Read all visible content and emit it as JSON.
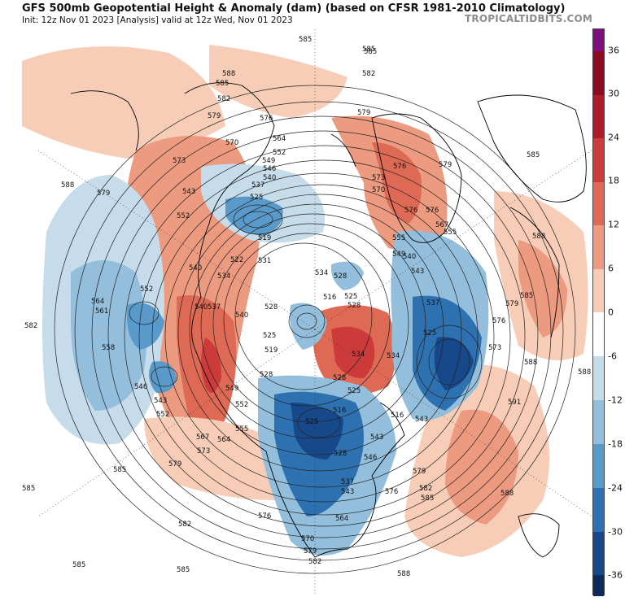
{
  "header": {
    "title": "GFS 500mb Geopotential Height & Anomaly (dam) (based on CFSR 1981-2010 Climatology)",
    "subtitle": "Init: 12z Nov 01 2023   [Analysis]   valid at 12z Wed, Nov 01 2023",
    "brand": "TROPICALTIDBITS.COM"
  },
  "colorbar": {
    "labels": [
      "36",
      "30",
      "24",
      "18",
      "12",
      "6",
      "0",
      "-6",
      "-12",
      "-18",
      "-24",
      "-30",
      "-36"
    ],
    "colors": [
      "#7f0f7e",
      "#8e0a23",
      "#b11a2a",
      "#cc3b3a",
      "#de6a55",
      "#ec9a80",
      "#f7cdb8",
      "#ffffff",
      "#c6dcea",
      "#93bfdc",
      "#5a9acb",
      "#2d71b1",
      "#17498a",
      "#0d2a5a"
    ]
  },
  "map": {
    "projection": "north-polar-stereographic",
    "contour_interval_dam": 3,
    "height_labels": [
      "591",
      "588",
      "585",
      "582",
      "579",
      "576",
      "573",
      "570",
      "567",
      "564",
      "561",
      "558",
      "555",
      "552",
      "549",
      "546",
      "543",
      "540",
      "537",
      "534",
      "531",
      "528",
      "525",
      "522",
      "519",
      "516"
    ],
    "anomaly_features": [
      {
        "type": "negative",
        "region": "north-central North America / Great Lakes",
        "color": "#17498a"
      },
      {
        "type": "negative",
        "region": "North Atlantic / British Isles",
        "color": "#2d71b1"
      },
      {
        "type": "negative",
        "region": "Gulf of Alaska / North Pacific",
        "color": "#5a9acb"
      },
      {
        "type": "negative",
        "region": "East Siberian / Arctic",
        "color": "#5a9acb"
      },
      {
        "type": "positive",
        "region": "Western North America",
        "color": "#de6a55"
      },
      {
        "type": "positive",
        "region": "Greenland",
        "color": "#cc3b3a"
      },
      {
        "type": "positive",
        "region": "Scandinavia / Western Russia",
        "color": "#de6a55"
      },
      {
        "type": "positive",
        "region": "Subtropical Atlantic",
        "color": "#ec9a80"
      }
    ]
  }
}
